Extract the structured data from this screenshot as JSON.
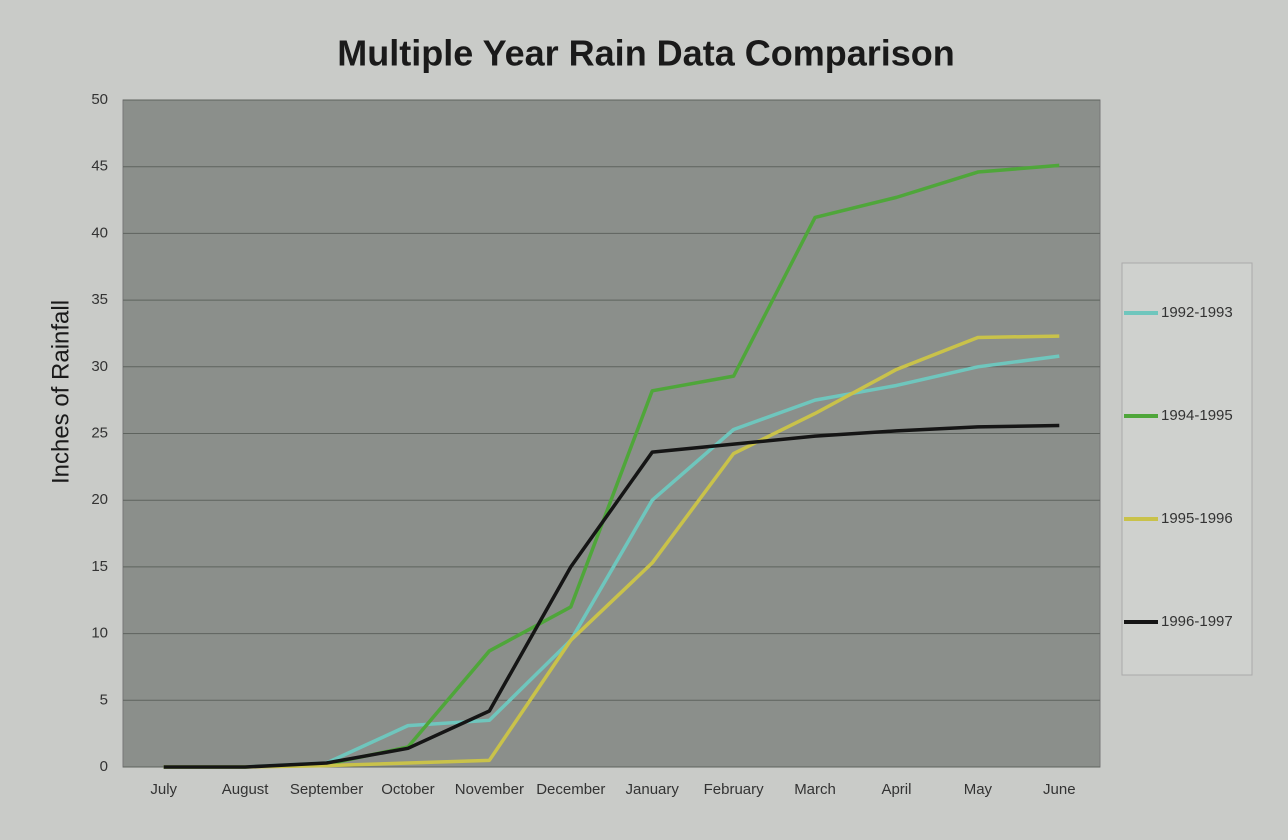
{
  "chart_data": {
    "type": "line",
    "title": "Multiple Year Rain Data Comparison",
    "y_label": "Inches of Rainfall",
    "categories": [
      "July",
      "August",
      "September",
      "October",
      "November",
      "December",
      "January",
      "February",
      "March",
      "April",
      "May",
      "June"
    ],
    "series": [
      {
        "name": "1992-1993",
        "color": "#6fc6bd",
        "values": [
          0,
          0,
          0.3,
          3.1,
          3.5,
          9.5,
          20,
          25.3,
          27.5,
          28.6,
          30,
          30.8
        ]
      },
      {
        "name": "1994-1995",
        "color": "#4fa63a",
        "values": [
          0,
          0,
          0.2,
          1.5,
          8.7,
          12,
          28.2,
          29.3,
          41.2,
          42.7,
          44.6,
          45.1
        ]
      },
      {
        "name": "1995-1996",
        "color": "#c9c24a",
        "values": [
          0,
          0,
          0.1,
          0.3,
          0.5,
          9.5,
          15.3,
          23.5,
          26.5,
          29.8,
          32.2,
          32.3
        ]
      },
      {
        "name": "1996-1997",
        "color": "#151515",
        "values": [
          0,
          0,
          0.3,
          1.4,
          4.2,
          15,
          23.6,
          24.2,
          24.8,
          25.2,
          25.5,
          25.6
        ]
      }
    ],
    "ylim": [
      0,
      50
    ],
    "yticks": [
      0,
      5,
      10,
      15,
      20,
      25,
      30,
      35,
      40,
      45,
      50
    ],
    "grid": true,
    "legend": "right"
  }
}
